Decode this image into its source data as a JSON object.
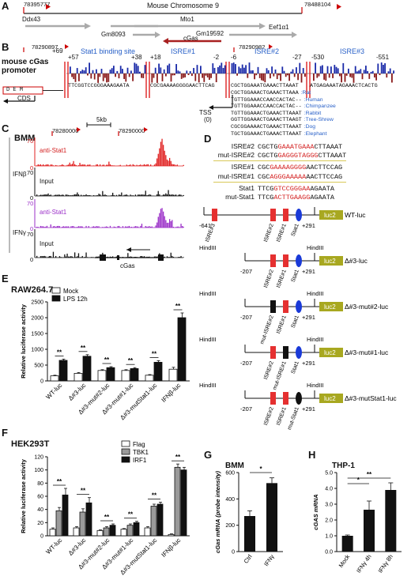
{
  "panels": {
    "A": {
      "label": "A",
      "coord_left": "78395777",
      "coord_right": "78488104",
      "title": "Mouse Chromosome 9",
      "genes": [
        "Ddx43",
        "Mto1",
        "Gm8093",
        "cGas",
        "Gm19592",
        "Eef1α1"
      ]
    },
    "B": {
      "label": "B",
      "coord_left": "78290897",
      "coord_right": "78290982",
      "promoter_label": "mouse cGas promoter",
      "positions": [
        "+69",
        "+57",
        "+38",
        "+18",
        "-2",
        "-6",
        "-27",
        "-530",
        "-551"
      ],
      "sites": [
        "Stat1 binding site",
        "ISRE#1",
        "ISRE#2",
        "ISRE#3"
      ],
      "seq1": "TTCGGTCCGGGAAAGAATA",
      "seq2": "CGCGAAAAGGGGAACTTCAG",
      "seq3": "CGCTGGAAATGAAACTTAAAT",
      "seq4": "ATGAGAAATAGAAACTCACTG",
      "cds": "CDS",
      "dem": "D E M",
      "tss": "TSS",
      "tss_pos": "(0)",
      "alignment": [
        {
          "seq": "CGCTGGAAACTGAAACTTAAA",
          "species": ":Rat"
        },
        {
          "seq": "TGTTGGAAACCAACCACTAC--",
          "species": ":Human"
        },
        {
          "seq": "TGTTGGAAACCAACCACTAC--",
          "species": ":Chimpanzee"
        },
        {
          "seq": "TGTTGGAAACTGAAACTTAAAT",
          "species": ":Rabbit"
        },
        {
          "seq": "GGTTGGAAACTGAAACTTAAGT",
          "species": ":Tree-Shrew"
        },
        {
          "seq": "CGCGGAAAACTGAAACTTAAAT",
          "species": ":Dog"
        },
        {
          "seq": "TGCTGGAAACTGAAACTTAAAT",
          "species": ":Elephant"
        }
      ]
    },
    "C": {
      "label": "C",
      "cell": "BMM",
      "scale": "5kb",
      "coord1": "78280000",
      "coord2": "78290000",
      "tracks": [
        "anti-Stat1",
        "Input",
        "anti-Stat1",
        "Input"
      ],
      "ymax": [
        "70",
        "70",
        "70",
        "70"
      ],
      "ymin": [
        "0",
        "0",
        "0",
        "0"
      ],
      "conditions": [
        "IFNβ",
        "IFNγ"
      ],
      "gene": "cGas"
    },
    "D": {
      "label": "D",
      "seqs": [
        {
          "name": "ISRE#2",
          "pre": "CGCTG",
          "mid": "GAAATGAAA",
          "post": "CTTAAAT"
        },
        {
          "name": "mut-ISRE#2",
          "pre": "CGCTG",
          "mid": "GAGGGTAGGG",
          "post": "CTTAAAT"
        },
        {
          "name": "ISRE#1",
          "pre": "CGC",
          "mid": "GAAAAGGGG",
          "post": "AACTTCCAG"
        },
        {
          "name": "mut-ISRE#1",
          "pre": "CGC",
          "mid": "AGGGAAAAA",
          "post": "AACTTCCAG"
        },
        {
          "name": "Stat1",
          "pre": "TTCG",
          "mid": "GTCCGGGAA",
          "post": "AGAATA"
        },
        {
          "name": "mut-Stat1",
          "pre": "TTCG",
          "mid": "ACTTGAAGG",
          "post": "AGAATA"
        }
      ],
      "hindiii": "HindIII",
      "luc2": "luc2",
      "constructs": [
        {
          "name": "WT-luc",
          "start": "-641",
          "end": "+291"
        },
        {
          "name": "Δ#3-luc",
          "start": "-207",
          "end": "+291"
        },
        {
          "name": "Δ#3-mut#2-luc",
          "start": "-207",
          "end": "+291"
        },
        {
          "name": "Δ#3-mut#1-luc",
          "start": "-207",
          "end": "+291"
        },
        {
          "name": "Δ#3-mutStat1-luc",
          "start": "-207",
          "end": "+291"
        }
      ],
      "elements": [
        "ISRE#3",
        "ISRE#2",
        "ISRE#1",
        "Stat1",
        "mut-ISRE#2",
        "mut-ISRE#1",
        "mut-Stat1"
      ]
    },
    "E": {
      "label": "E",
      "cell": "RAW264.7",
      "sig": "**"
    },
    "F": {
      "label": "F",
      "cell": "HEK293T",
      "sig": "**"
    },
    "G": {
      "label": "G",
      "cell": "BMM",
      "sig": "*"
    },
    "H": {
      "label": "H",
      "cell": "THP-1",
      "sig1": "*",
      "sig2": "**"
    }
  },
  "colors": {
    "mock": "#ffffff",
    "lps": "#111111",
    "tbk1": "#9a9a9a",
    "irf1": "#111111",
    "stat1_ifnb": "#e02020",
    "stat1_ifng": "#9b30c8",
    "input": "#111111",
    "isre": "#e53030",
    "stat1_site": "#1a3ad8",
    "luc": "#a8a820",
    "mutant": "#111111"
  },
  "chart_data": [
    {
      "id": "E",
      "type": "bar",
      "title": "RAW264.7",
      "ylabel": "Relative luciferase activity",
      "ylim": [
        0,
        2500
      ],
      "yticks": [
        0,
        500,
        1000,
        1500,
        2000,
        2500
      ],
      "categories": [
        "WT-luc",
        "Δ#3-luc",
        "Δ#3-mut#2-luc",
        "Δ#3-mut#1-luc",
        "Δ#3-mutStat1-luc",
        "IFNβ-luc"
      ],
      "series": [
        {
          "name": "Mock",
          "values": [
            160,
            240,
            330,
            330,
            180,
            370
          ],
          "errors": [
            20,
            25,
            25,
            25,
            20,
            60
          ]
        },
        {
          "name": "LPS 12h",
          "values": [
            650,
            780,
            420,
            390,
            590,
            2000
          ],
          "errors": [
            40,
            50,
            30,
            30,
            50,
            150
          ]
        }
      ],
      "legend": "top-left"
    },
    {
      "id": "F",
      "type": "bar",
      "title": "HEK293T",
      "ylabel": "Relative luciferase activity",
      "ylim": [
        0,
        120
      ],
      "yticks": [
        0,
        20,
        40,
        60,
        80,
        100,
        120
      ],
      "categories": [
        "WT-luc",
        "Δ#3-luc",
        "Δ#3-mut#2-luc",
        "Δ#3-mut#1-luc",
        "Δ#3-mutStat1-luc",
        "IFNβ-luc"
      ],
      "series": [
        {
          "name": "Flag",
          "values": [
            10,
            12,
            8,
            10,
            12,
            2
          ],
          "errors": [
            2,
            2,
            1,
            1,
            2,
            1
          ]
        },
        {
          "name": "TBK1",
          "values": [
            38,
            36,
            12,
            16,
            45,
            104
          ],
          "errors": [
            5,
            5,
            2,
            2,
            3,
            5
          ]
        },
        {
          "name": "IRF1",
          "values": [
            62,
            50,
            16,
            20,
            48,
            100
          ],
          "errors": [
            10,
            8,
            2,
            2,
            3,
            4
          ]
        }
      ],
      "legend": "top-right"
    },
    {
      "id": "G",
      "type": "bar",
      "title": "BMM",
      "ylabel": "cGas mRNA (probe intensity)",
      "ylim": [
        0,
        600
      ],
      "yticks": [
        0,
        200,
        400,
        600
      ],
      "categories": [
        "Ctrl",
        "IFNγ"
      ],
      "values": [
        270,
        520
      ],
      "errors": [
        40,
        40
      ]
    },
    {
      "id": "H",
      "type": "bar",
      "title": "THP-1",
      "ylabel": "cGAS mRNA",
      "ylim": [
        0,
        5.0
      ],
      "yticks": [
        0.0,
        1.0,
        2.0,
        3.0,
        4.0,
        5.0
      ],
      "categories": [
        "Mock",
        "IFNγ 4h",
        "IFNγ 8h"
      ],
      "values": [
        1.0,
        2.65,
        3.9
      ],
      "errors": [
        0.05,
        0.55,
        0.45
      ]
    }
  ]
}
